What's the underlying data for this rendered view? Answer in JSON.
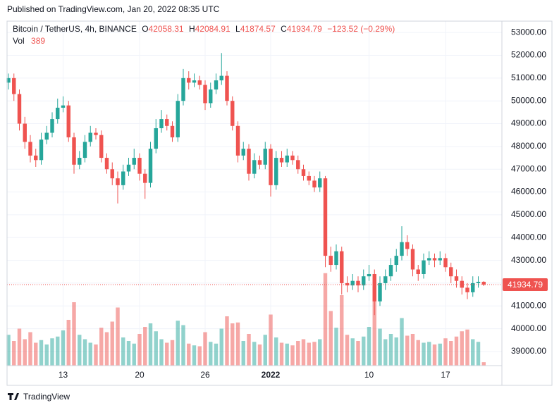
{
  "published": "Published on TradingView.com, Jan 20, 2022 08:35 UTC",
  "footer": "TradingView",
  "chart_data": {
    "type": "candlestick",
    "symbol": "Bitcoin / TetherUS, 4h, BINANCE",
    "ohlc_prefixes": [
      "O",
      "H",
      "L",
      "C"
    ],
    "change": "−123.52 (−0.29%)",
    "volume_label": "Vol",
    "categories": [
      null,
      null,
      null,
      null,
      null,
      null,
      null,
      null,
      null,
      null,
      "13",
      null,
      null,
      null,
      null,
      null,
      null,
      null,
      null,
      null,
      null,
      null,
      null,
      null,
      "20",
      null,
      null,
      null,
      null,
      null,
      null,
      null,
      null,
      null,
      null,
      null,
      "26",
      null,
      null,
      null,
      null,
      null,
      null,
      null,
      null,
      null,
      null,
      null,
      "2022",
      null,
      null,
      null,
      null,
      null,
      null,
      null,
      null,
      null,
      null,
      null,
      null,
      null,
      null,
      null,
      null,
      null,
      "10",
      null,
      null,
      null,
      null,
      null,
      null,
      null,
      null,
      null,
      null,
      null,
      null,
      null,
      "17",
      null,
      null,
      null,
      null,
      null,
      null,
      null
    ],
    "open": [
      50800,
      51000,
      50300,
      49000,
      48200,
      47600,
      47400,
      48300,
      48600,
      49200,
      49700,
      49800,
      48400,
      47200,
      47500,
      48200,
      48600,
      48500,
      47500,
      47000,
      46600,
      46300,
      46900,
      47200,
      47500,
      46800,
      46400,
      47900,
      48800,
      49200,
      48900,
      48400,
      50000,
      51000,
      50800,
      50900,
      50700,
      49900,
      50500,
      50900,
      51100,
      50000,
      48900,
      47600,
      47900,
      46800,
      47400,
      47200,
      47900,
      46300,
      47500,
      47300,
      47600,
      47400,
      47000,
      46700,
      46500,
      46200,
      46600,
      43200,
      42800,
      43400,
      42000,
      41900,
      42100,
      41900,
      42300,
      42400,
      41200,
      42000,
      42300,
      42800,
      43200,
      43800,
      43500,
      42600,
      42400,
      43000,
      43100,
      43000,
      43100,
      42700,
      42300,
      42100,
      41800,
      41600,
      42000,
      42058.31
    ],
    "high": [
      51200,
      51200,
      50500,
      49300,
      48500,
      47900,
      48600,
      48900,
      49500,
      50100,
      50200,
      50000,
      48600,
      47800,
      48500,
      48900,
      48800,
      48700,
      47700,
      47300,
      46900,
      47200,
      47500,
      47900,
      47700,
      47000,
      48200,
      49200,
      49600,
      49400,
      49100,
      50300,
      51400,
      51300,
      51200,
      51100,
      50900,
      50800,
      51200,
      52100,
      51300,
      50200,
      49100,
      48200,
      48100,
      47700,
      47600,
      48200,
      48100,
      47800,
      47800,
      47900,
      47800,
      47600,
      47200,
      46900,
      46700,
      46900,
      46700,
      43600,
      43700,
      43600,
      42300,
      42400,
      42300,
      42600,
      42800,
      42600,
      42300,
      42600,
      43100,
      43500,
      44500,
      44100,
      43700,
      42800,
      43300,
      43400,
      43300,
      43400,
      43300,
      42900,
      42600,
      42300,
      42000,
      42300,
      42300,
      42084.91
    ],
    "low": [
      50500,
      50000,
      48700,
      47900,
      47300,
      47100,
      47200,
      48100,
      48400,
      49000,
      49500,
      48200,
      46800,
      47000,
      47300,
      48000,
      48300,
      47300,
      46800,
      46300,
      45500,
      46100,
      46700,
      47000,
      46500,
      45700,
      46200,
      47700,
      48600,
      48700,
      48200,
      48200,
      49800,
      50500,
      50600,
      50500,
      49600,
      49700,
      50300,
      50700,
      49800,
      48700,
      47300,
      47400,
      46500,
      46600,
      47000,
      47000,
      45800,
      46100,
      47100,
      47100,
      47200,
      46800,
      46500,
      46300,
      46000,
      46000,
      42700,
      42500,
      42600,
      41500,
      41600,
      41700,
      41600,
      41700,
      42100,
      40600,
      41000,
      41700,
      42100,
      42500,
      43000,
      43200,
      42300,
      42100,
      42200,
      42800,
      42700,
      42800,
      42500,
      42000,
      41800,
      41500,
      41300,
      41400,
      41800,
      41874.57
    ],
    "close": [
      51000,
      50300,
      49000,
      48200,
      47600,
      47400,
      48300,
      48600,
      49200,
      49700,
      49800,
      48400,
      47200,
      47500,
      48200,
      48600,
      48500,
      47500,
      47000,
      46600,
      46300,
      46900,
      47200,
      47500,
      46800,
      46400,
      47900,
      48800,
      49200,
      48900,
      48400,
      50000,
      51000,
      50800,
      50900,
      50700,
      49900,
      50500,
      50900,
      51100,
      50000,
      48900,
      47600,
      47900,
      46800,
      47400,
      47200,
      47900,
      46300,
      47500,
      47300,
      47600,
      47400,
      47000,
      46700,
      46500,
      46200,
      46600,
      43200,
      42800,
      43400,
      42000,
      41900,
      42100,
      41900,
      42300,
      42400,
      41200,
      42000,
      42300,
      42800,
      43200,
      43800,
      43500,
      42600,
      42400,
      43000,
      43100,
      43000,
      43100,
      42700,
      42300,
      42100,
      41800,
      41600,
      42000,
      42058.31,
      41934.79
    ],
    "volume": [
      3500,
      2800,
      4200,
      3000,
      3800,
      2600,
      2900,
      2400,
      3100,
      3300,
      4000,
      5200,
      7200,
      3500,
      3000,
      2600,
      2400,
      4300,
      3800,
      5000,
      6600,
      3200,
      2800,
      2500,
      3600,
      4400,
      4800,
      3900,
      3000,
      2600,
      2900,
      5100,
      4600,
      2500,
      2300,
      2200,
      3800,
      2700,
      2500,
      4200,
      5600,
      4800,
      4900,
      2800,
      3600,
      2700,
      2400,
      3500,
      5800,
      3200,
      2600,
      2500,
      2300,
      2800,
      3000,
      2600,
      2700,
      3000,
      10500,
      6200,
      4300,
      8000,
      3500,
      3100,
      2800,
      3300,
      4400,
      9000,
      4200,
      3000,
      3600,
      3200,
      5400,
      3400,
      3600,
      2900,
      2600,
      2700,
      2400,
      2500,
      3100,
      2800,
      3300,
      3900,
      4100,
      3000,
      2700,
      389
    ],
    "up_color": "#26a69a",
    "down_color": "#ef5350",
    "ylim": [
      38380,
      53500
    ],
    "yticks": [
      {
        "value": 39000,
        "label": "39000.00"
      },
      {
        "value": 40000,
        "label": "40000.00"
      },
      {
        "value": 41000,
        "label": "41000.00"
      },
      {
        "value": 42000,
        "label": "42000.00"
      },
      {
        "value": 43000,
        "label": "43000.00"
      },
      {
        "value": 44000,
        "label": "44000.00"
      },
      {
        "value": 45000,
        "label": "45000.00"
      },
      {
        "value": 46000,
        "label": "46000.00"
      },
      {
        "value": 47000,
        "label": "47000.00"
      },
      {
        "value": 48000,
        "label": "48000.00"
      },
      {
        "value": 49000,
        "label": "49000.00"
      },
      {
        "value": 50000,
        "label": "50000.00"
      },
      {
        "value": 51000,
        "label": "51000.00"
      },
      {
        "value": 52000,
        "label": "52000.00"
      },
      {
        "value": 53000,
        "label": "53000.00"
      }
    ],
    "volume_ylim": [
      0,
      12000
    ],
    "grid": true
  }
}
